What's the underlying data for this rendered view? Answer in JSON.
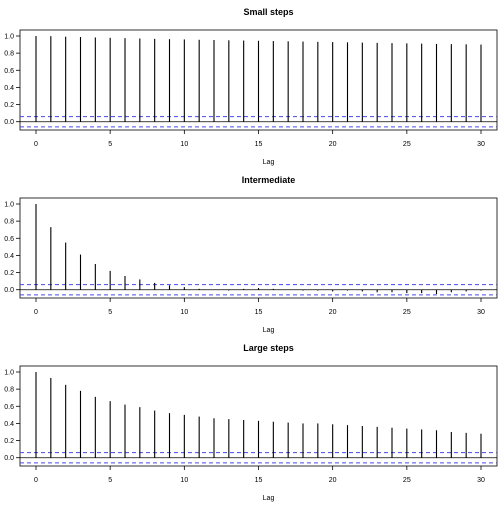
{
  "chart_data": [
    {
      "type": "bar",
      "title": "Small steps",
      "xlabel": "Lag",
      "ylabel": "",
      "x": [
        0,
        1,
        2,
        3,
        4,
        5,
        6,
        7,
        8,
        9,
        10,
        11,
        12,
        13,
        14,
        15,
        16,
        17,
        18,
        19,
        20,
        21,
        22,
        23,
        24,
        25,
        26,
        27,
        28,
        29,
        30
      ],
      "values": [
        1.0,
        0.998,
        0.992,
        0.988,
        0.983,
        0.979,
        0.975,
        0.971,
        0.967,
        0.963,
        0.96,
        0.956,
        0.953,
        0.95,
        0.947,
        0.944,
        0.941,
        0.938,
        0.935,
        0.932,
        0.929,
        0.926,
        0.923,
        0.92,
        0.917,
        0.914,
        0.911,
        0.908,
        0.905,
        0.903,
        0.9
      ],
      "ci": 0.06,
      "xlim": [
        0,
        30
      ],
      "ylim": [
        -0.05,
        1.0
      ],
      "xticks": [
        0,
        5,
        10,
        15,
        20,
        25,
        30
      ],
      "yticks": [
        0.0,
        0.2,
        0.4,
        0.6,
        0.8,
        1.0
      ],
      "yticklabels": [
        "0.0",
        "0.2",
        "0.4",
        "0.6",
        "0.8",
        "1.0"
      ],
      "grid": false,
      "ci_color": "#4a4aee",
      "bar_color": "#000000"
    },
    {
      "type": "bar",
      "title": "Intermediate",
      "xlabel": "Lag",
      "ylabel": "",
      "x": [
        0,
        1,
        2,
        3,
        4,
        5,
        6,
        7,
        8,
        9,
        10,
        11,
        12,
        13,
        14,
        15,
        16,
        17,
        18,
        19,
        20,
        21,
        22,
        23,
        24,
        25,
        26,
        27,
        28,
        29,
        30
      ],
      "values": [
        1.0,
        0.73,
        0.55,
        0.41,
        0.3,
        0.22,
        0.16,
        0.12,
        0.08,
        0.05,
        0.03,
        0.01,
        0.0,
        -0.01,
        0.01,
        0.02,
        0.01,
        0.0,
        -0.01,
        -0.01,
        -0.02,
        -0.01,
        -0.02,
        -0.03,
        -0.03,
        -0.04,
        -0.04,
        -0.05,
        -0.03,
        -0.02,
        -0.01
      ],
      "ci": 0.06,
      "xlim": [
        0,
        30
      ],
      "ylim": [
        -0.05,
        1.0
      ],
      "xticks": [
        0,
        5,
        10,
        15,
        20,
        25,
        30
      ],
      "yticks": [
        0.0,
        0.2,
        0.4,
        0.6,
        0.8,
        1.0
      ],
      "yticklabels": [
        "0.0",
        "0.2",
        "0.4",
        "0.6",
        "0.8",
        "1.0"
      ],
      "grid": false,
      "ci_color": "#4a4aee",
      "bar_color": "#000000"
    },
    {
      "type": "bar",
      "title": "Large steps",
      "xlabel": "Lag",
      "ylabel": "",
      "x": [
        0,
        1,
        2,
        3,
        4,
        5,
        6,
        7,
        8,
        9,
        10,
        11,
        12,
        13,
        14,
        15,
        16,
        17,
        18,
        19,
        20,
        21,
        22,
        23,
        24,
        25,
        26,
        27,
        28,
        29,
        30
      ],
      "values": [
        1.0,
        0.93,
        0.85,
        0.78,
        0.71,
        0.66,
        0.62,
        0.59,
        0.55,
        0.52,
        0.5,
        0.48,
        0.46,
        0.45,
        0.44,
        0.43,
        0.42,
        0.41,
        0.4,
        0.4,
        0.39,
        0.38,
        0.37,
        0.36,
        0.35,
        0.34,
        0.33,
        0.32,
        0.3,
        0.29,
        0.28
      ],
      "ci": 0.06,
      "xlim": [
        0,
        30
      ],
      "ylim": [
        -0.05,
        1.0
      ],
      "xticks": [
        0,
        5,
        10,
        15,
        20,
        25,
        30
      ],
      "yticks": [
        0.0,
        0.2,
        0.4,
        0.6,
        0.8,
        1.0
      ],
      "yticklabels": [
        "0.0",
        "0.2",
        "0.4",
        "0.6",
        "0.8",
        "1.0"
      ],
      "grid": false,
      "ci_color": "#4a4aee",
      "bar_color": "#000000"
    }
  ]
}
